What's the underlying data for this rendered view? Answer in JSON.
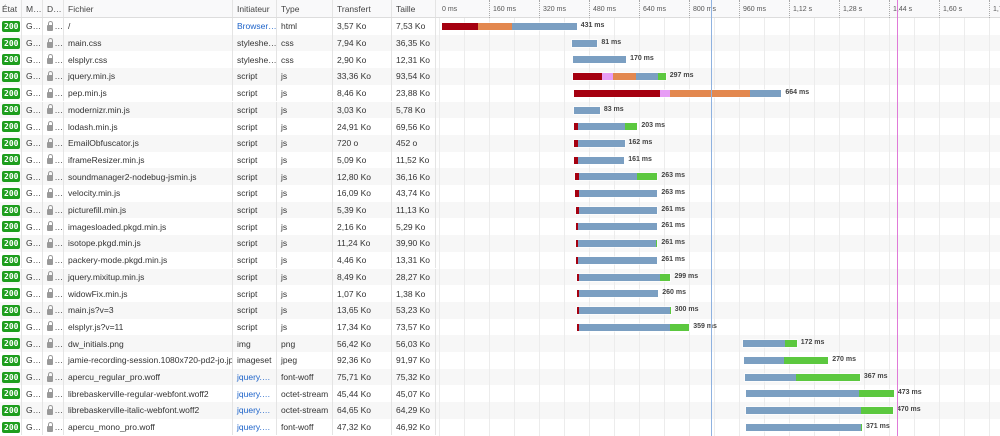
{
  "columns": {
    "status": "État",
    "method": "M…",
    "domain": "D…",
    "file": "Fichier",
    "initiator": "Initiateur",
    "type": "Type",
    "transferred": "Transfert",
    "size": "Taille"
  },
  "waterfall": {
    "ticks": [
      "0 ms",
      "160 ms",
      "320 ms",
      "480 ms",
      "640 ms",
      "800 ms",
      "960 ms",
      "1,12 s",
      "1,28 s",
      "1,44 s",
      "1,60 s",
      "1,76"
    ],
    "dom_content_loaded_ms": 865,
    "load_ms": 1460,
    "colors": {
      "blocked": "#a50010",
      "dns": "#e79df5",
      "connect": "#e3884f",
      "wait": "#7b9fc2",
      "receive": "#5cc83f",
      "dcl_line": "#8fb2e0",
      "load_line": "#e07ad8",
      "status_ok": "#1e9e1e",
      "link": "#1d63c9"
    }
  },
  "rows": [
    {
      "status": "200",
      "method": "G…",
      "domain": "…",
      "file": "/",
      "initiator": "Browser…",
      "initiator_link": true,
      "type": "html",
      "transferred": "3,57 Ko",
      "size": "7,53 Ko",
      "start": 0,
      "segments": [
        [
          "blocked",
          115
        ],
        [
          "connect",
          110
        ],
        [
          "wait",
          206
        ]
      ],
      "duration": "431 ms"
    },
    {
      "status": "200",
      "method": "G…",
      "domain": "…",
      "file": "main.css",
      "initiator": "styleshe…",
      "type": "css",
      "transferred": "7,94 Ko",
      "size": "36,35 Ko",
      "start": 416,
      "segments": [
        [
          "wait",
          81
        ]
      ],
      "duration": "81 ms"
    },
    {
      "status": "200",
      "method": "G…",
      "domain": "…",
      "file": "elsplyr.css",
      "initiator": "styleshe…",
      "type": "css",
      "transferred": "2,90 Ko",
      "size": "12,31 Ko",
      "start": 419,
      "segments": [
        [
          "wait",
          170
        ]
      ],
      "duration": "170 ms"
    },
    {
      "status": "200",
      "method": "G…",
      "domain": "…",
      "file": "jquery.min.js",
      "initiator": "script",
      "type": "js",
      "transferred": "33,36 Ko",
      "size": "93,54 Ko",
      "start": 419,
      "segments": [
        [
          "blocked",
          93
        ],
        [
          "dns",
          35
        ],
        [
          "connect",
          74
        ],
        [
          "wait",
          70
        ],
        [
          "receive",
          25
        ]
      ],
      "duration": "297 ms"
    },
    {
      "status": "200",
      "method": "G…",
      "domain": "…",
      "file": "pep.min.js",
      "initiator": "script",
      "type": "js",
      "transferred": "8,46 Ko",
      "size": "23,88 Ko",
      "start": 422,
      "segments": [
        [
          "blocked",
          275
        ],
        [
          "dns",
          32
        ],
        [
          "connect",
          257
        ],
        [
          "wait",
          100
        ]
      ],
      "duration": "664 ms"
    },
    {
      "status": "200",
      "method": "G…",
      "domain": "…",
      "file": "modernizr.min.js",
      "initiator": "script",
      "type": "js",
      "transferred": "3,03 Ko",
      "size": "5,78 Ko",
      "start": 422,
      "segments": [
        [
          "wait",
          83
        ]
      ],
      "duration": "83 ms"
    },
    {
      "status": "200",
      "method": "G…",
      "domain": "…",
      "file": "lodash.min.js",
      "initiator": "script",
      "type": "js",
      "transferred": "24,91 Ko",
      "size": "69,56 Ko",
      "start": 422,
      "segments": [
        [
          "blocked",
          13
        ],
        [
          "wait",
          150
        ],
        [
          "receive",
          40
        ]
      ],
      "duration": "203 ms"
    },
    {
      "status": "200",
      "method": "G…",
      "domain": "…",
      "file": "EmailObfuscator.js",
      "initiator": "script",
      "type": "js",
      "transferred": "720 o",
      "size": "452 o",
      "start": 422,
      "segments": [
        [
          "blocked",
          13
        ],
        [
          "wait",
          149
        ]
      ],
      "duration": "162 ms"
    },
    {
      "status": "200",
      "method": "G…",
      "domain": "…",
      "file": "iframeResizer.min.js",
      "initiator": "script",
      "type": "js",
      "transferred": "5,09 Ko",
      "size": "11,52 Ko",
      "start": 422,
      "segments": [
        [
          "blocked",
          13
        ],
        [
          "wait",
          148
        ]
      ],
      "duration": "161 ms"
    },
    {
      "status": "200",
      "method": "G…",
      "domain": "…",
      "file": "soundmanager2-nodebug-jsmin.js",
      "initiator": "script",
      "type": "js",
      "transferred": "12,80 Ko",
      "size": "36,16 Ko",
      "start": 426,
      "segments": [
        [
          "blocked",
          12
        ],
        [
          "wait",
          187
        ],
        [
          "receive",
          64
        ]
      ],
      "duration": "263 ms"
    },
    {
      "status": "200",
      "method": "G…",
      "domain": "…",
      "file": "velocity.min.js",
      "initiator": "script",
      "type": "js",
      "transferred": "16,09 Ko",
      "size": "43,74 Ko",
      "start": 426,
      "segments": [
        [
          "blocked",
          12
        ],
        [
          "wait",
          251
        ]
      ],
      "duration": "263 ms"
    },
    {
      "status": "200",
      "method": "G…",
      "domain": "…",
      "file": "picturefill.min.js",
      "initiator": "script",
      "type": "js",
      "transferred": "5,39 Ko",
      "size": "11,13 Ko",
      "start": 428,
      "segments": [
        [
          "blocked",
          10
        ],
        [
          "wait",
          251
        ]
      ],
      "duration": "261 ms"
    },
    {
      "status": "200",
      "method": "G…",
      "domain": "…",
      "file": "imagesloaded.pkgd.min.js",
      "initiator": "script",
      "type": "js",
      "transferred": "2,16 Ko",
      "size": "5,29 Ko",
      "start": 428,
      "segments": [
        [
          "blocked",
          6
        ],
        [
          "wait",
          255
        ]
      ],
      "duration": "261 ms"
    },
    {
      "status": "200",
      "method": "G…",
      "domain": "…",
      "file": "isotope.pkgd.min.js",
      "initiator": "script",
      "type": "js",
      "transferred": "11,24 Ko",
      "size": "39,90 Ko",
      "start": 428,
      "segments": [
        [
          "blocked",
          6
        ],
        [
          "wait",
          252
        ],
        [
          "receive",
          3
        ]
      ],
      "duration": "261 ms"
    },
    {
      "status": "200",
      "method": "G…",
      "domain": "…",
      "file": "packery-mode.pkgd.min.js",
      "initiator": "script",
      "type": "js",
      "transferred": "4,46 Ko",
      "size": "13,31 Ko",
      "start": 428,
      "segments": [
        [
          "blocked",
          6
        ],
        [
          "wait",
          255
        ]
      ],
      "duration": "261 ms"
    },
    {
      "status": "200",
      "method": "G…",
      "domain": "…",
      "file": "jquery.mixitup.min.js",
      "initiator": "script",
      "type": "js",
      "transferred": "8,49 Ko",
      "size": "28,27 Ko",
      "start": 432,
      "segments": [
        [
          "blocked",
          7
        ],
        [
          "wait",
          257
        ],
        [
          "receive",
          35
        ]
      ],
      "duration": "299 ms"
    },
    {
      "status": "200",
      "method": "G…",
      "domain": "…",
      "file": "widowFix.min.js",
      "initiator": "script",
      "type": "js",
      "transferred": "1,07 Ko",
      "size": "1,38 Ko",
      "start": 432,
      "segments": [
        [
          "blocked",
          7
        ],
        [
          "wait",
          253
        ]
      ],
      "duration": "260 ms"
    },
    {
      "status": "200",
      "method": "G…",
      "domain": "…",
      "file": "main.js?v=3",
      "initiator": "script",
      "type": "js",
      "transferred": "13,65 Ko",
      "size": "53,23 Ko",
      "start": 432,
      "segments": [
        [
          "blocked",
          7
        ],
        [
          "wait",
          290
        ],
        [
          "receive",
          3
        ]
      ],
      "duration": "300 ms"
    },
    {
      "status": "200",
      "method": "G…",
      "domain": "…",
      "file": "elsplyr.js?v=11",
      "initiator": "script",
      "type": "js",
      "transferred": "17,34 Ko",
      "size": "73,57 Ko",
      "start": 432,
      "segments": [
        [
          "blocked",
          6
        ],
        [
          "wait",
          291
        ],
        [
          "receive",
          62
        ]
      ],
      "duration": "359 ms"
    },
    {
      "status": "200",
      "method": "G…",
      "domain": "…",
      "file": "dw_initials.png",
      "initiator": "img",
      "type": "png",
      "transferred": "56,42 Ko",
      "size": "56,03 Ko",
      "start": 963,
      "segments": [
        [
          "wait",
          134
        ],
        [
          "receive",
          38
        ]
      ],
      "duration": "172 ms"
    },
    {
      "status": "200",
      "method": "G…",
      "domain": "…",
      "file": "jamie-recording-session.1080x720-pd2-jo.jpg",
      "initiator": "imageset",
      "type": "jpeg",
      "transferred": "92,36 Ko",
      "size": "91,97 Ko",
      "start": 966,
      "segments": [
        [
          "wait",
          128
        ],
        [
          "receive",
          142
        ]
      ],
      "duration": "270 ms"
    },
    {
      "status": "200",
      "method": "G…",
      "domain": "…",
      "file": "apercu_regular_pro.woff",
      "initiator": "jquery.…",
      "initiator_link": true,
      "type": "font-woff",
      "transferred": "75,71 Ko",
      "size": "75,32 Ko",
      "start": 970,
      "segments": [
        [
          "wait",
          163
        ],
        [
          "receive",
          204
        ]
      ],
      "duration": "367 ms"
    },
    {
      "status": "200",
      "method": "G…",
      "domain": "…",
      "file": "librebaskerville-regular-webfont.woff2",
      "initiator": "jquery.…",
      "initiator_link": true,
      "type": "octet-stream",
      "transferred": "45,44 Ko",
      "size": "45,07 Ko",
      "start": 973,
      "segments": [
        [
          "wait",
          362
        ],
        [
          "receive",
          111
        ]
      ],
      "duration": "473 ms"
    },
    {
      "status": "200",
      "method": "G…",
      "domain": "…",
      "file": "librebaskerville-italic-webfont.woff2",
      "initiator": "jquery.…",
      "initiator_link": true,
      "type": "octet-stream",
      "transferred": "64,65 Ko",
      "size": "64,29 Ko",
      "start": 973,
      "segments": [
        [
          "wait",
          368
        ],
        [
          "receive",
          102
        ]
      ],
      "duration": "470 ms"
    },
    {
      "status": "200",
      "method": "G…",
      "domain": "…",
      "file": "apercu_mono_pro.woff",
      "initiator": "jquery.…",
      "initiator_link": true,
      "type": "font-woff",
      "transferred": "47,32 Ko",
      "size": "46,92 Ko",
      "start": 973,
      "segments": [
        [
          "wait",
          368
        ],
        [
          "receive",
          3
        ]
      ],
      "duration": "371 ms"
    }
  ]
}
